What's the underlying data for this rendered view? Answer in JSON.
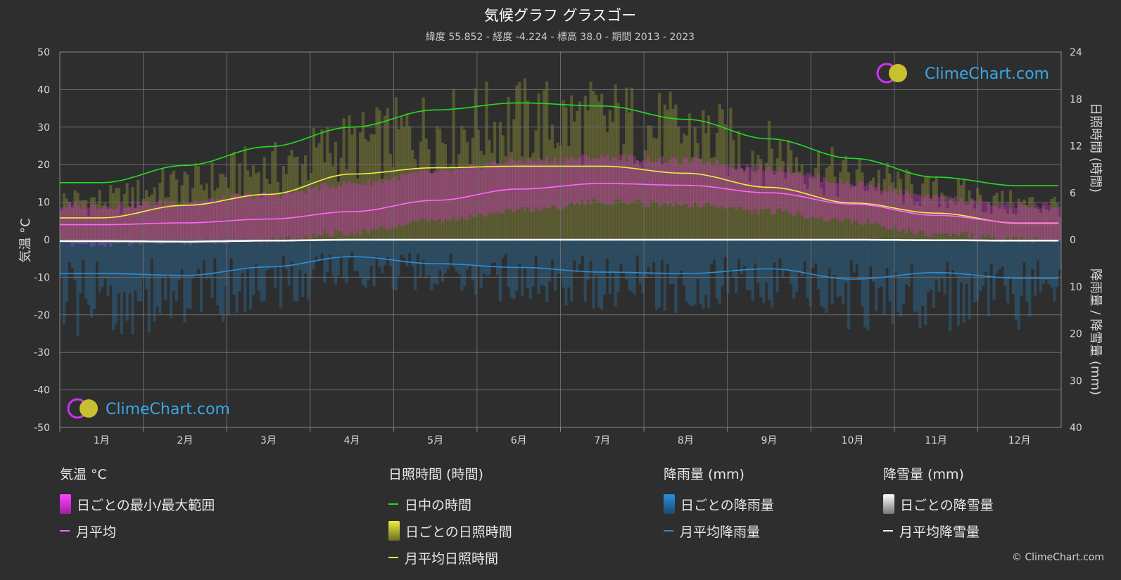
{
  "header": {
    "title": "気候グラフ グラスゴー",
    "subtitle": "緯度 55.852 - 経度 -4.224 - 標高 38.0 - 期間 2013 - 2023"
  },
  "axes": {
    "left_title": "気温 °C",
    "right_top_title": "日照時間 (時間)",
    "right_bottom_title": "降雨量 / 降雪量 (mm)"
  },
  "logo": {
    "text": "ClimeChart.com"
  },
  "copyright": "© ClimeChart.com",
  "legend": {
    "temp": {
      "header": "気温 °C",
      "range": "日ごとの最小/最大範囲",
      "avg": "月平均"
    },
    "sun": {
      "header": "日照時間 (時間)",
      "daylight": "日中の時間",
      "daily": "日ごとの日照時間",
      "avg": "月平均日照時間"
    },
    "rain": {
      "header": "降雨量 (mm)",
      "daily": "日ごとの降雨量",
      "avg": "月平均降雨量"
    },
    "snow": {
      "header": "降雪量 (mm)",
      "daily": "日ごとの降雪量",
      "avg": "月平均降雪量"
    }
  },
  "colors": {
    "background": "#2e2e2e",
    "daylight": "#22dd22",
    "sunshine": "#eeee44",
    "temp_avg": "#ff66ff",
    "temp_range": "#e030d0",
    "rain": "#2a8fd8",
    "snow": "#ffffff"
  },
  "chart_data": {
    "type": "line",
    "months": [
      "1月",
      "2月",
      "3月",
      "4月",
      "5月",
      "6月",
      "7月",
      "8月",
      "9月",
      "10月",
      "11月",
      "12月"
    ],
    "left_axis": {
      "ticks": [
        50,
        40,
        30,
        20,
        10,
        0,
        -10,
        -20,
        -30,
        -40,
        -50
      ],
      "ylim": [
        -50,
        50
      ]
    },
    "right_top_axis": {
      "ticks": [
        24,
        18,
        12,
        6,
        0
      ],
      "ylim": [
        0,
        24
      ]
    },
    "right_bottom_axis": {
      "ticks": [
        0,
        10,
        20,
        30,
        40
      ],
      "ylim": [
        0,
        40
      ]
    },
    "series": [
      {
        "name": "日中の時間",
        "axis": "hours",
        "values": [
          7.3,
          9.5,
          11.9,
          14.4,
          16.6,
          17.5,
          17.1,
          15.4,
          12.9,
          10.4,
          8.0,
          6.9
        ]
      },
      {
        "name": "月平均日照時間",
        "axis": "hours",
        "values": [
          2.8,
          4.4,
          5.8,
          8.4,
          9.2,
          9.4,
          9.4,
          8.5,
          6.7,
          4.7,
          3.4,
          2.1
        ]
      },
      {
        "name": "月平均",
        "axis": "temp",
        "values": [
          4.0,
          4.5,
          5.5,
          7.5,
          10.5,
          13.5,
          15.0,
          14.5,
          12.5,
          9.5,
          6.5,
          4.5
        ]
      },
      {
        "name": "月平均降雨量",
        "axis": "precip",
        "values": [
          7.2,
          7.6,
          5.8,
          3.6,
          5.1,
          5.9,
          6.9,
          7.2,
          6.2,
          8.4,
          7.0,
          8.2
        ]
      },
      {
        "name": "月平均降雪量",
        "axis": "precip",
        "values": [
          0.3,
          0.4,
          0.2,
          0.0,
          0.0,
          0.0,
          0.0,
          0.0,
          0.0,
          0.0,
          0.1,
          0.2
        ]
      }
    ],
    "daily_temp_range": {
      "name": "日ごとの最小/最大範囲",
      "min": [
        0,
        0.5,
        1,
        3,
        6,
        9,
        11,
        10.5,
        8.5,
        6,
        2.5,
        1
      ],
      "max": [
        8,
        9,
        11,
        14,
        17,
        20,
        21,
        20,
        18,
        14,
        10,
        8
      ]
    },
    "daily_sunshine": {
      "name": "日ごとの日照時間",
      "values": [
        5,
        7,
        9,
        12,
        14,
        15,
        15,
        13.5,
        11,
        8,
        6,
        4.5
      ]
    },
    "daily_rain": {
      "name": "日ごとの降雨量",
      "values": [
        14,
        13,
        11,
        7,
        8,
        9,
        10,
        11,
        10,
        13,
        13,
        14
      ]
    }
  }
}
